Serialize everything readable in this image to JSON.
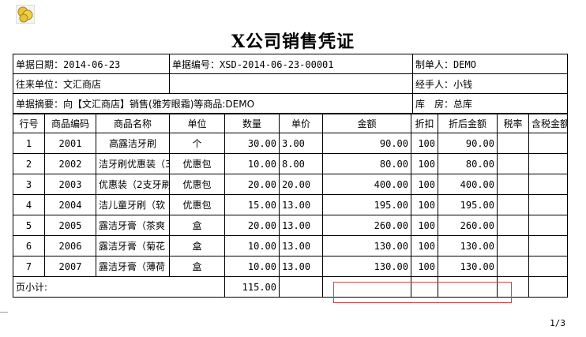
{
  "title": "X公司销售凭证",
  "header": {
    "date_label": "单据日期：",
    "date_value": "2014-06-23",
    "docno_label": "单据编号：",
    "docno_value": "XSD-2014-06-23-00001",
    "maker_label": "制单人：",
    "maker_value": "DEMO",
    "partner_label": "往来单位：",
    "partner_value": "文汇商店",
    "handler_label": "经手人：",
    "handler_value": "小钱",
    "summary_label": "单据摘要：",
    "summary_value": "向【文汇商店】销售(雅芳眼霜)等商品:DEMO",
    "warehouse_label": "库　房：",
    "warehouse_value": "总库"
  },
  "columns": [
    "行号",
    "商品编码",
    "商品名称",
    "单位",
    "数量",
    "单价",
    "金额",
    "折扣",
    "折后金额",
    "税率",
    "含税金额"
  ],
  "rows": [
    {
      "no": "1",
      "code": "2001",
      "name": "高露洁牙刷",
      "unit": "个",
      "qty": "30.00",
      "price": "3.00",
      "amount": "90.00",
      "discount": "100",
      "net": "90.00",
      "tax": "",
      "gross": ""
    },
    {
      "no": "2",
      "code": "2002",
      "name": "洁牙刷优惠装（3",
      "unit": "优惠包",
      "qty": "10.00",
      "price": "8.00",
      "amount": "80.00",
      "discount": "100",
      "net": "80.00",
      "tax": "",
      "gross": ""
    },
    {
      "no": "3",
      "code": "2003",
      "name": "优惠装（2支牙刷",
      "unit": "优惠包",
      "qty": "20.00",
      "price": "20.00",
      "amount": "400.00",
      "discount": "100",
      "net": "400.00",
      "tax": "",
      "gross": ""
    },
    {
      "no": "4",
      "code": "2004",
      "name": "洁儿童牙刷（软",
      "unit": "优惠包",
      "qty": "15.00",
      "price": "13.00",
      "amount": "195.00",
      "discount": "100",
      "net": "195.00",
      "tax": "",
      "gross": ""
    },
    {
      "no": "5",
      "code": "2005",
      "name": "露洁牙膏（茶爽",
      "unit": "盒",
      "qty": "20.00",
      "price": "13.00",
      "amount": "260.00",
      "discount": "100",
      "net": "260.00",
      "tax": "",
      "gross": ""
    },
    {
      "no": "6",
      "code": "2006",
      "name": "露洁牙膏（菊花",
      "unit": "盒",
      "qty": "10.00",
      "price": "13.00",
      "amount": "130.00",
      "discount": "100",
      "net": "130.00",
      "tax": "",
      "gross": ""
    },
    {
      "no": "7",
      "code": "2007",
      "name": "露洁牙膏（薄荷",
      "unit": "盒",
      "qty": "10.00",
      "price": "13.00",
      "amount": "130.00",
      "discount": "100",
      "net": "130.00",
      "tax": "",
      "gross": ""
    }
  ],
  "subtotal": {
    "label": "页小计:",
    "qty": "115.00"
  },
  "page_indicator": "1/3",
  "colors": {
    "selection_border": "#d94040"
  }
}
